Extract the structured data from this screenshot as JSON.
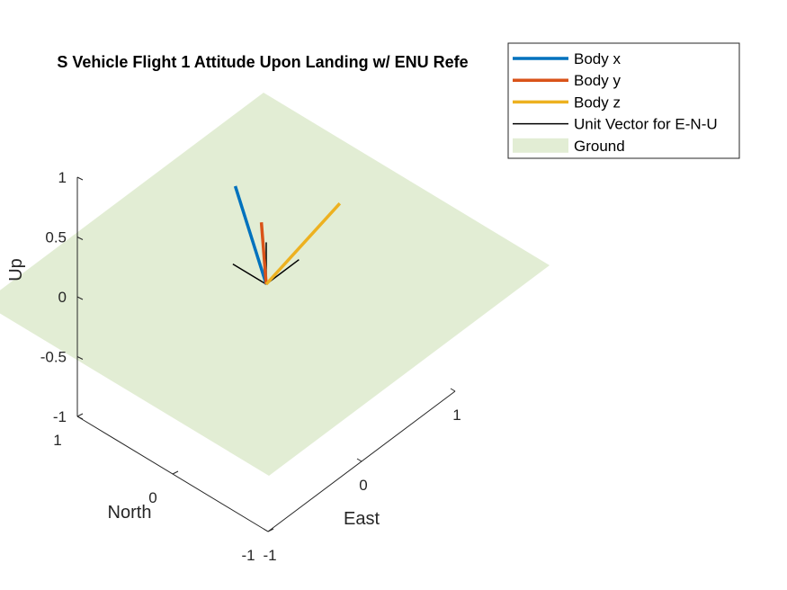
{
  "chart_data": {
    "type": "line3d",
    "title": "S Vehicle Flight 1 Attitude Upon Landing w/ ENU Refe",
    "xlabel": "East",
    "ylabel": "North",
    "zlabel": "Up",
    "xlim": [
      -1,
      1
    ],
    "ylim": [
      -1,
      1
    ],
    "zlim": [
      -1,
      1
    ],
    "xticks": [
      "-1",
      "0",
      "1"
    ],
    "yticks": [
      "-1",
      "0",
      "1"
    ],
    "zticks": [
      "-1",
      "-0.5",
      "0",
      "0.5",
      "1"
    ],
    "grid": false,
    "legend_position": "top-right",
    "colors": {
      "body_x": "#0072BD",
      "body_y": "#D95319",
      "body_z": "#EDB120",
      "enu": "#000000",
      "ground": "#E2EDD4"
    },
    "series": [
      {
        "name": "Body x",
        "key": "body_x",
        "width": 3.5,
        "vector": [
          -0.28,
          0.05,
          0.96
        ]
      },
      {
        "name": "Body y",
        "key": "body_y",
        "width": 3.5,
        "vector": [
          0.05,
          0.1,
          0.44
        ]
      },
      {
        "name": "Body z",
        "key": "body_z",
        "width": 3.5,
        "vector": [
          0.97,
          0.18,
          0.02
        ]
      },
      {
        "name": "Unit Vector for E-N-U",
        "key": "enu",
        "width": 1.5,
        "vectors": [
          [
            0.35,
            0,
            0
          ],
          [
            0,
            0.35,
            0
          ],
          [
            0,
            0,
            0.35
          ]
        ]
      }
    ],
    "ground": {
      "name": "Ground",
      "key": "ground",
      "extent": 1.5,
      "z": 0
    }
  }
}
